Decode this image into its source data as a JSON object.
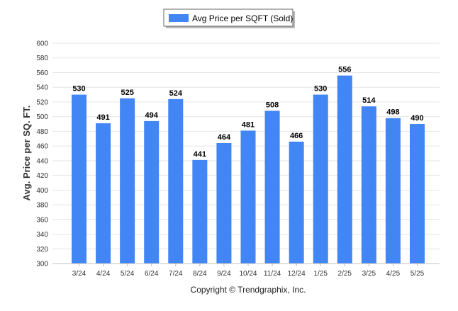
{
  "chart_data": {
    "type": "bar",
    "categories": [
      "3/24",
      "4/24",
      "5/24",
      "6/24",
      "7/24",
      "8/24",
      "9/24",
      "10/24",
      "11/24",
      "12/24",
      "1/25",
      "2/25",
      "3/25",
      "4/25",
      "5/25"
    ],
    "series": [
      {
        "name": "Avg Price per SQFT (Sold)",
        "values": [
          530,
          491,
          525,
          494,
          524,
          441,
          464,
          481,
          508,
          466,
          530,
          556,
          514,
          498,
          490
        ],
        "color": "#4285f4"
      }
    ],
    "title": "",
    "xlabel": "",
    "ylabel": "Avg. Price per SQ. FT.",
    "ylim": [
      300,
      600
    ],
    "yticks": [
      300,
      320,
      340,
      360,
      380,
      400,
      420,
      440,
      460,
      480,
      500,
      520,
      540,
      560,
      580,
      600
    ],
    "grid": true,
    "legend_position": "top-center",
    "data_labels": true
  },
  "footer": {
    "copyright": "Copyright © Trendgraphix, Inc."
  }
}
